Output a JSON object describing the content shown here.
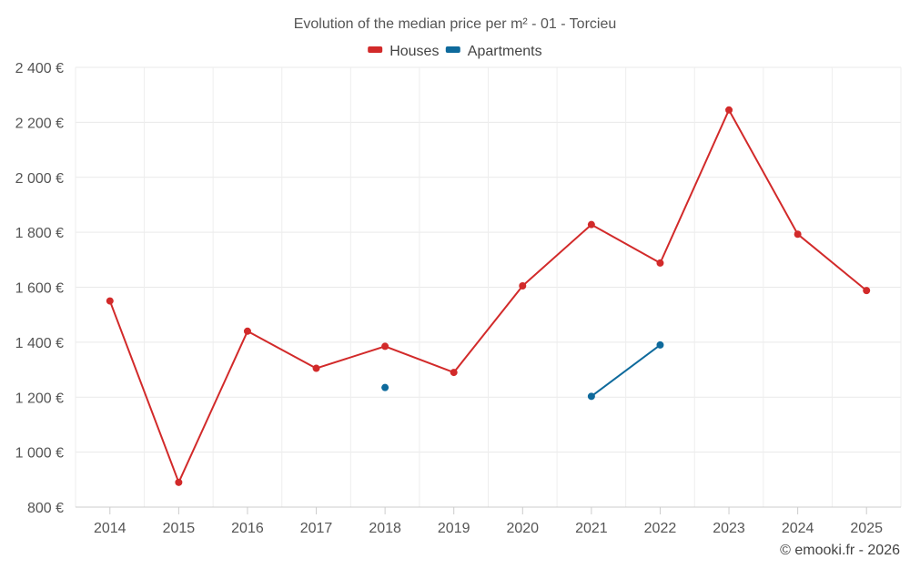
{
  "chart_data": {
    "type": "line",
    "title": "Evolution of the median price per m² - 01 - Torcieu",
    "xlabel": "",
    "ylabel": "",
    "categories": [
      "2014",
      "2015",
      "2016",
      "2017",
      "2018",
      "2019",
      "2020",
      "2021",
      "2022",
      "2023",
      "2024",
      "2025"
    ],
    "ylim": [
      800,
      2400
    ],
    "yticks": [
      800,
      1000,
      1200,
      1400,
      1600,
      1800,
      2000,
      2200,
      2400
    ],
    "ytick_labels": [
      "800 €",
      "1 000 €",
      "1 200 €",
      "1 400 €",
      "1 600 €",
      "1 800 €",
      "2 000 €",
      "2 200 €",
      "2 400 €"
    ],
    "grid": true,
    "legend_position": "top-center",
    "series": [
      {
        "name": "Houses",
        "color": "#d22a2a",
        "values": [
          1550,
          890,
          1440,
          1305,
          1385,
          1290,
          1605,
          1828,
          1688,
          2245,
          1793,
          1588
        ]
      },
      {
        "name": "Apartments",
        "color": "#0e6a9c",
        "values": [
          null,
          null,
          null,
          null,
          1235,
          null,
          null,
          1203,
          1390,
          null,
          null,
          null
        ]
      }
    ],
    "credit": "© emooki.fr - 2026"
  }
}
